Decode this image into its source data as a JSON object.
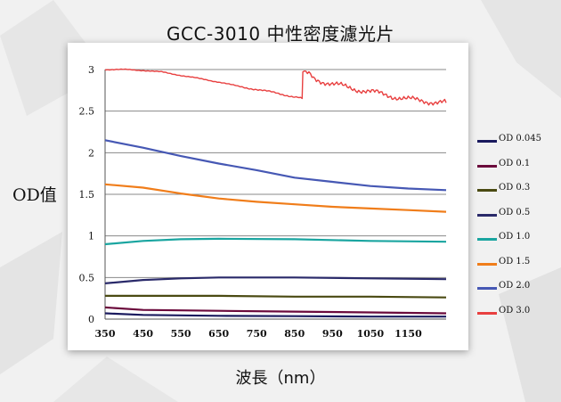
{
  "chart_data": {
    "type": "line",
    "title": "GCC-3010  中性密度濾光片",
    "ylabel": "OD值",
    "xlabel": "波長（nm）",
    "xlim": [
      350,
      1250
    ],
    "ylim": [
      0,
      3
    ],
    "x_ticks": [
      "350",
      "450",
      "550",
      "650",
      "750",
      "850",
      "950",
      "1050",
      "1150"
    ],
    "y_ticks": [
      "0",
      "0.5",
      "1",
      "1.5",
      "2",
      "2.5",
      "3"
    ],
    "grid": "horizontal",
    "legend_position": "right",
    "series": [
      {
        "name": "OD 0.045",
        "color": "#1a1a5e",
        "points": [
          [
            350,
            0.07
          ],
          [
            450,
            0.05
          ],
          [
            650,
            0.04
          ],
          [
            850,
            0.035
          ],
          [
            1050,
            0.03
          ],
          [
            1250,
            0.03
          ]
        ]
      },
      {
        "name": "OD 0.1",
        "color": "#6b0a3c",
        "points": [
          [
            350,
            0.14
          ],
          [
            450,
            0.11
          ],
          [
            650,
            0.1
          ],
          [
            850,
            0.09
          ],
          [
            1050,
            0.08
          ],
          [
            1250,
            0.07
          ]
        ]
      },
      {
        "name": "OD 0.3",
        "color": "#4a4a12",
        "points": [
          [
            350,
            0.28
          ],
          [
            450,
            0.28
          ],
          [
            650,
            0.28
          ],
          [
            850,
            0.27
          ],
          [
            1050,
            0.27
          ],
          [
            1250,
            0.26
          ]
        ]
      },
      {
        "name": "OD 0.5",
        "color": "#2a2a6a",
        "points": [
          [
            350,
            0.43
          ],
          [
            450,
            0.47
          ],
          [
            550,
            0.49
          ],
          [
            650,
            0.5
          ],
          [
            850,
            0.5
          ],
          [
            1050,
            0.49
          ],
          [
            1250,
            0.48
          ]
        ]
      },
      {
        "name": "OD 1.0",
        "color": "#1aa5a0",
        "points": [
          [
            350,
            0.9
          ],
          [
            450,
            0.94
          ],
          [
            550,
            0.96
          ],
          [
            650,
            0.965
          ],
          [
            850,
            0.96
          ],
          [
            1050,
            0.94
          ],
          [
            1250,
            0.93
          ]
        ]
      },
      {
        "name": "OD 1.5",
        "color": "#f07d1a",
        "points": [
          [
            350,
            1.62
          ],
          [
            450,
            1.58
          ],
          [
            550,
            1.51
          ],
          [
            650,
            1.45
          ],
          [
            750,
            1.41
          ],
          [
            850,
            1.38
          ],
          [
            950,
            1.35
          ],
          [
            1050,
            1.33
          ],
          [
            1150,
            1.31
          ],
          [
            1250,
            1.29
          ]
        ]
      },
      {
        "name": "OD 2.0",
        "color": "#4658b4",
        "points": [
          [
            350,
            2.15
          ],
          [
            450,
            2.06
          ],
          [
            550,
            1.96
          ],
          [
            650,
            1.87
          ],
          [
            750,
            1.79
          ],
          [
            850,
            1.7
          ],
          [
            950,
            1.65
          ],
          [
            1050,
            1.6
          ],
          [
            1150,
            1.57
          ],
          [
            1250,
            1.55
          ]
        ]
      },
      {
        "name": "OD 3.0",
        "color": "#e84040",
        "points": [
          [
            350,
            3.0
          ],
          [
            400,
            3.0
          ],
          [
            450,
            2.99
          ],
          [
            500,
            2.97
          ],
          [
            550,
            2.93
          ],
          [
            600,
            2.89
          ],
          [
            650,
            2.85
          ],
          [
            700,
            2.8
          ],
          [
            750,
            2.76
          ],
          [
            800,
            2.72
          ],
          [
            850,
            2.67
          ],
          [
            870,
            2.65
          ],
          [
            872,
            2.98
          ],
          [
            900,
            2.9
          ],
          [
            950,
            2.82
          ],
          [
            1000,
            2.78
          ],
          [
            1050,
            2.73
          ],
          [
            1100,
            2.69
          ],
          [
            1150,
            2.64
          ],
          [
            1200,
            2.62
          ],
          [
            1250,
            2.6
          ]
        ]
      }
    ]
  }
}
